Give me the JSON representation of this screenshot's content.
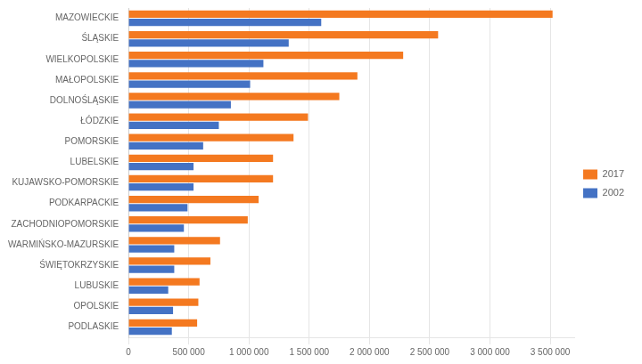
{
  "chart_data": {
    "type": "bar",
    "orientation": "horizontal",
    "categories": [
      "MAZOWIECKIE",
      "ŚLĄSKIE",
      "WIELKOPOLSKIE",
      "MAŁOPOLSKIE",
      "DOLNOŚLĄSKIE",
      "ŁÓDZKIE",
      "POMORSKIE",
      "LUBELSKIE",
      "KUJAWSKO-POMORSKIE",
      "PODKARPACKIE",
      "ZACHODNIOPOMORSKIE",
      "WARMIŃSKO-MAZURSKIE",
      "ŚWIĘTOKRZYSKIE",
      "LUBUSKIE",
      "OPOLSKIE",
      "PODLASKIE"
    ],
    "series": [
      {
        "name": "2017",
        "color": "#f47920",
        "values": [
          3520000,
          2570000,
          2280000,
          1900000,
          1750000,
          1490000,
          1370000,
          1200000,
          1200000,
          1080000,
          990000,
          760000,
          680000,
          590000,
          580000,
          570000
        ]
      },
      {
        "name": "2002",
        "color": "#4472c4",
        "values": [
          1600000,
          1330000,
          1120000,
          1010000,
          850000,
          750000,
          620000,
          540000,
          540000,
          490000,
          460000,
          380000,
          380000,
          330000,
          370000,
          360000
        ]
      }
    ],
    "xlim": [
      0,
      3700000
    ],
    "xticks": [
      0,
      {
        "value": 500000,
        "label": "500 000"
      },
      {
        "value": 1000000,
        "label": "1 000 000"
      },
      {
        "value": 1500000,
        "label": "1 500 000"
      },
      {
        "value": 2000000,
        "label": "2 000 000"
      },
      {
        "value": 2500000,
        "label": "2 500 000"
      },
      {
        "value": 3000000,
        "label": "3 000 000"
      },
      {
        "value": 3500000,
        "label": "3 500 000"
      }
    ],
    "grid": true,
    "legend": "right"
  }
}
